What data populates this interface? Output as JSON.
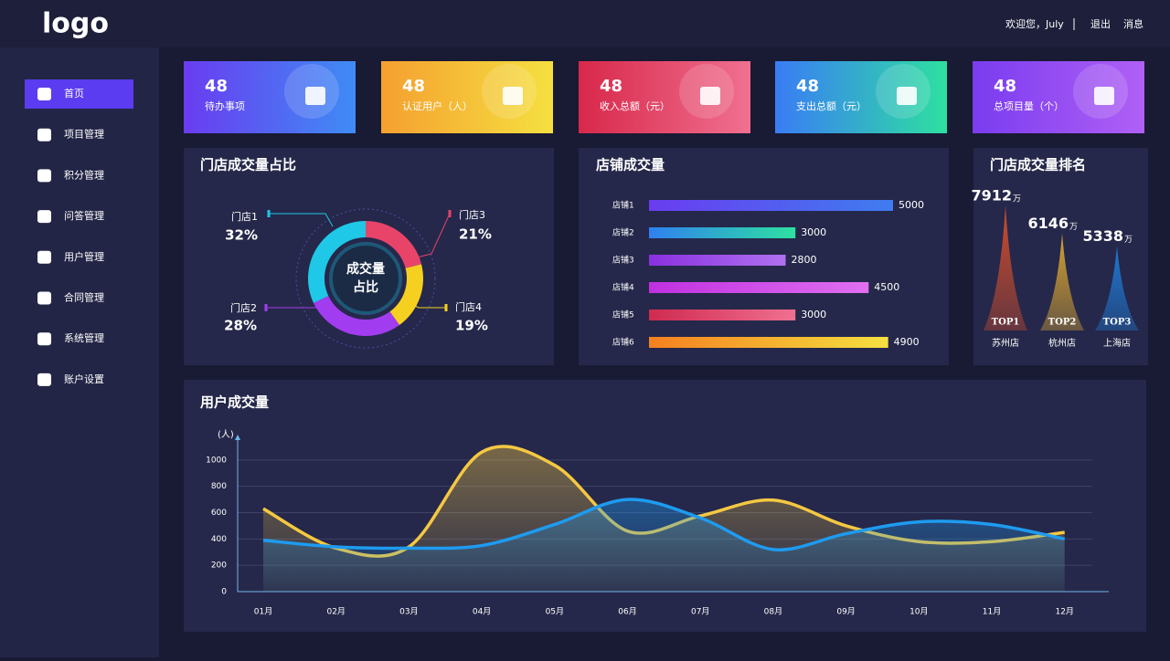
{
  "header": {
    "logo": "logo",
    "welcome": "欢迎您，July",
    "logout": "退出",
    "messages": "消息"
  },
  "sidebar": {
    "items": [
      "首页",
      "项目管理",
      "积分管理",
      "问答管理",
      "用户管理",
      "合同管理",
      "系统管理",
      "账户设置"
    ],
    "active": 0
  },
  "cards": [
    {
      "value": 48,
      "label": "待办事项",
      "colors": [
        "#6a3cf0",
        "#3f8cf5"
      ]
    },
    {
      "value": 48,
      "label": "认证用户（人）",
      "colors": [
        "#f5a030",
        "#f5e040"
      ]
    },
    {
      "value": 48,
      "label": "收入总额（元）",
      "colors": [
        "#d8284a",
        "#f07090"
      ]
    },
    {
      "value": 48,
      "label": "支出总额（元）",
      "colors": [
        "#3a7cf5",
        "#2ee0a0"
      ]
    },
    {
      "value": 48,
      "label": "总项目量（个）",
      "colors": [
        "#7a3cf0",
        "#b060f5"
      ]
    }
  ],
  "chart_data": [
    {
      "type": "pie",
      "title": "门店成交量占比",
      "center_text": [
        "成交量",
        "占比"
      ],
      "categories": [
        "门店1",
        "门店2",
        "门店3",
        "门店4"
      ],
      "values": [
        32,
        28,
        21,
        19
      ],
      "value_labels": [
        "32%",
        "28%",
        "21%",
        "19%"
      ],
      "colors": [
        "#1ec8e6",
        "#a23cf0",
        "#e8446a",
        "#f5d020"
      ]
    },
    {
      "type": "hbar",
      "title": "店铺成交量",
      "categories": [
        "店铺1",
        "店铺2",
        "店铺3",
        "店铺4",
        "店铺5",
        "店铺6"
      ],
      "values": [
        5000,
        3000,
        2800,
        4500,
        3000,
        4900
      ],
      "colors": [
        [
          "#6a3cf0",
          "#3f7cf0"
        ],
        [
          "#2f80f0",
          "#2ee0a0"
        ],
        [
          "#8a30e0",
          "#b070f0"
        ],
        [
          "#c030e0",
          "#e070f0"
        ],
        [
          "#d02a50",
          "#f07090"
        ],
        [
          "#f58020",
          "#f5e040"
        ]
      ]
    },
    {
      "type": "peak",
      "title": "门店成交量排名",
      "categories": [
        "苏州店",
        "杭州店",
        "上海店"
      ],
      "values": [
        7912,
        6146,
        5338
      ],
      "unit": "万",
      "rank_labels": [
        "TOP1",
        "TOP2",
        "TOP3"
      ],
      "colors": [
        "#e0502a",
        "#e8b030",
        "#2080e0"
      ]
    },
    {
      "type": "line",
      "title": "用户成交量",
      "y_label": "(人)",
      "categories": [
        "01月",
        "02月",
        "03月",
        "04月",
        "05月",
        "06月",
        "07月",
        "08月",
        "09月",
        "10月",
        "11月",
        "12月"
      ],
      "ylim": [
        0,
        1200
      ],
      "yticks": [
        0,
        200,
        400,
        600,
        800,
        1000
      ],
      "grid": true,
      "series": [
        {
          "color": "#f5c842",
          "values": [
            630,
            330,
            340,
            1060,
            960,
            460,
            575,
            695,
            500,
            380,
            380,
            450
          ]
        },
        {
          "color": "#1e9bf0",
          "values": [
            390,
            340,
            330,
            350,
            510,
            700,
            560,
            320,
            440,
            530,
            510,
            400
          ]
        }
      ]
    }
  ]
}
